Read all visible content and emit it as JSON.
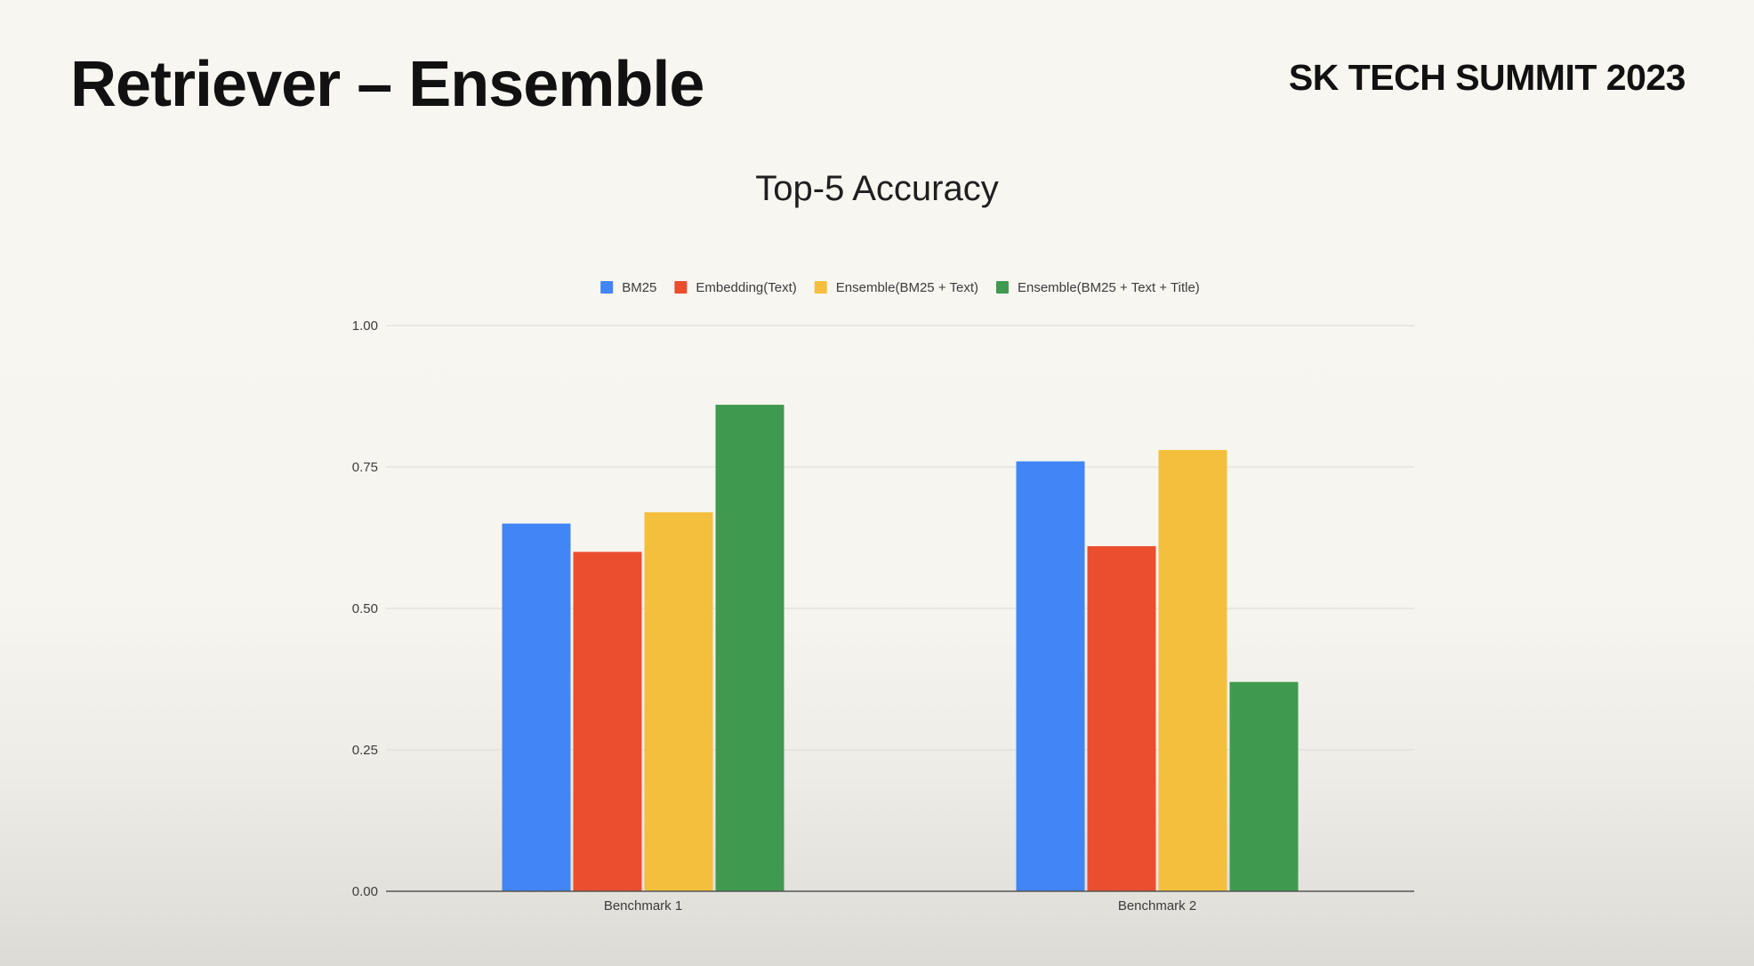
{
  "slide": {
    "title": "Retriever – Ensemble",
    "brand": "SK TECH SUMMIT 2023"
  },
  "colors": {
    "background": "#f8f6f0",
    "gridline": "#dcdad4",
    "axis": "#555555"
  },
  "chart_data": {
    "type": "bar",
    "title": "Top-5 Accuracy",
    "xlabel": "",
    "ylabel": "",
    "categories": [
      "Benchmark 1",
      "Benchmark 2"
    ],
    "series": [
      {
        "name": "BM25",
        "color": "#4285f4",
        "values": [
          0.65,
          0.76
        ]
      },
      {
        "name": "Embedding(Text)",
        "color": "#ea4e2f",
        "values": [
          0.6,
          0.61
        ]
      },
      {
        "name": "Ensemble(BM25 + Text)",
        "color": "#f4bf3c",
        "values": [
          0.67,
          0.78
        ]
      },
      {
        "name": "Ensemble(BM25 + Text + Title)",
        "color": "#3f9a4f",
        "values": [
          0.86,
          0.37
        ]
      }
    ],
    "ylim": [
      0,
      1
    ],
    "yticks": [
      0,
      0.25,
      0.5,
      0.75,
      1
    ],
    "ytick_labels": [
      "0.00",
      "0.25",
      "0.50",
      "0.75",
      "1.00"
    ],
    "grid": true,
    "legend_position": "top"
  }
}
